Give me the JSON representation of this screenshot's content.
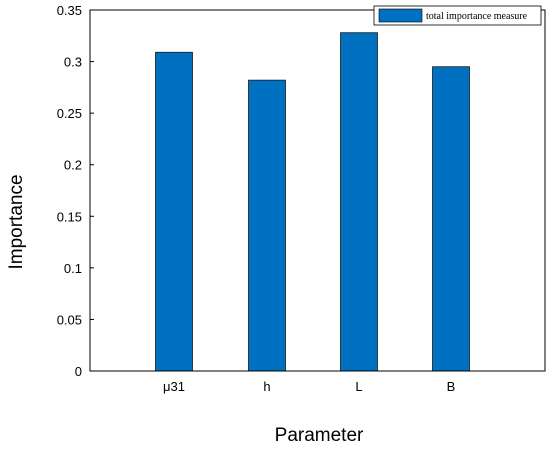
{
  "chart_data": {
    "type": "bar",
    "categories": [
      "μ31",
      "h",
      "L",
      "B"
    ],
    "series": [
      {
        "name": "total importance measure",
        "values": [
          0.309,
          0.282,
          0.328,
          0.295
        ]
      }
    ],
    "xlabel": "Parameter",
    "ylabel": "Importance",
    "ylim": [
      0,
      0.35
    ],
    "yticks": [
      "0",
      "0.05",
      "0.1",
      "0.15",
      "0.2",
      "0.25",
      "0.3",
      "0.35"
    ],
    "grid": false,
    "legend_position": "top-right",
    "bar_color": "#0070c0"
  }
}
